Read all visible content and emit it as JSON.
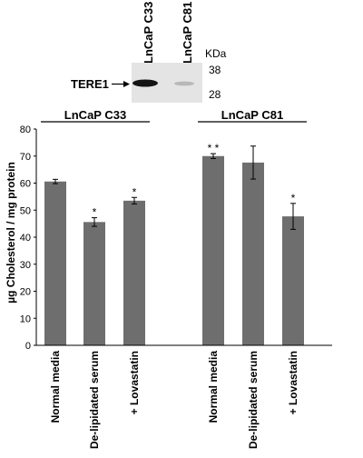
{
  "blot": {
    "lanes": [
      "LnCaP C33",
      "LnCaP C81"
    ],
    "band_label": "TERE1",
    "unit_label": "KDa",
    "markers": [
      "38",
      "28"
    ]
  },
  "chart_data": {
    "type": "bar",
    "ylabel": "µg Cholesterol / mg protein",
    "ylim": [
      0,
      80
    ],
    "yticks": [
      0,
      10,
      20,
      30,
      40,
      50,
      60,
      70,
      80
    ],
    "grid": false,
    "groups": [
      {
        "label": "LnCaP C33",
        "categories": [
          "Normal media",
          "De-lipidated serum",
          "+ Lovastatin"
        ]
      },
      {
        "label": "LnCaP C81",
        "categories": [
          "Normal media",
          "De-lipidated serum",
          "+ Lovastatin"
        ]
      }
    ],
    "categories": [
      "Normal media",
      "De-lipidated serum",
      "+ Lovastatin",
      "Normal media",
      "De-lipidated serum",
      "+ Lovastatin"
    ],
    "values": [
      60.6,
      45.6,
      53.5,
      70.0,
      67.6,
      47.7
    ],
    "errors": [
      0.8,
      1.6,
      1.2,
      0.9,
      6.1,
      4.8
    ],
    "annotations": [
      "",
      "*",
      "*",
      "* *",
      "",
      "*"
    ],
    "bar_color": "#6e6e6e"
  }
}
